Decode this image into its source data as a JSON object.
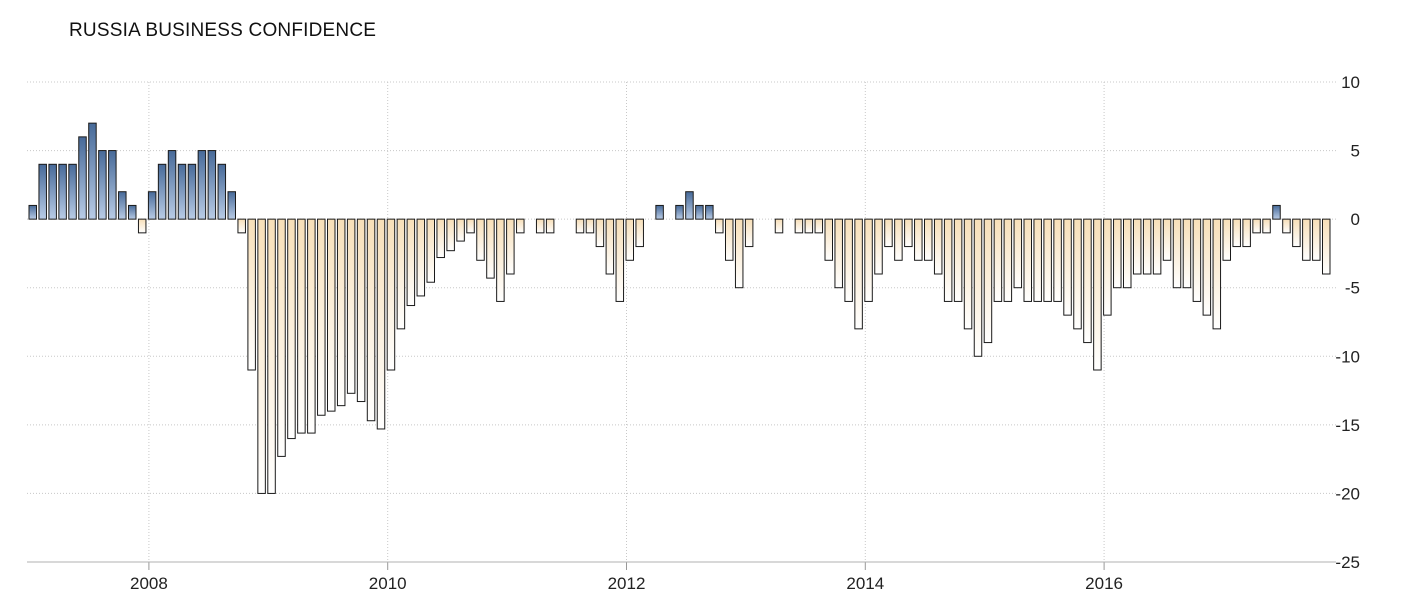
{
  "chart_data": {
    "type": "bar",
    "title": "RUSSIA BUSINESS CONFIDENCE",
    "xlabel": "",
    "ylabel": "",
    "ylim": [
      -25,
      10
    ],
    "y_ticks": [
      10,
      5,
      0,
      -5,
      -10,
      -15,
      -20,
      -25
    ],
    "x_ticks": [
      "2008",
      "2010",
      "2012",
      "2014",
      "2016"
    ],
    "x_range": [
      "2007-01",
      "2017-12"
    ],
    "grid": true,
    "y_axis_side": "right",
    "colors": {
      "positive": "#7f9ec9",
      "negative": "#fbe9cf",
      "outline": "#1a1a1a",
      "grid": "#c8c8c8"
    },
    "series": [
      {
        "values": [
          1,
          4,
          4,
          4,
          4,
          6,
          7,
          5,
          5,
          2,
          1,
          -1,
          2,
          4,
          5,
          4,
          4,
          5,
          5,
          4,
          2,
          -1,
          -11,
          -20,
          -20,
          -17.3,
          -16,
          -15.6,
          -15.6,
          -14.3,
          -14,
          -13.6,
          -12.7,
          -13.3,
          -14.7,
          -15.3,
          -11,
          -8,
          -6.3,
          -5.6,
          -4.6,
          -2.8,
          -2.3,
          -1.6,
          -1,
          -3,
          -4.3,
          -6,
          -4,
          -1,
          0,
          -1,
          -1,
          0,
          0,
          -1,
          -1,
          -2,
          -4,
          -6,
          -3,
          -2,
          0,
          1,
          0,
          1,
          2,
          1,
          1,
          -1,
          -3,
          -5,
          -2,
          0,
          0,
          -1,
          0,
          -1,
          -1,
          -1,
          -3,
          -5,
          -6,
          -8,
          -6,
          -4,
          -2,
          -3,
          -2,
          -3,
          -3,
          -4,
          -6,
          -6,
          -8,
          -10,
          -9,
          -6,
          -6,
          -5,
          -6,
          -6,
          -6,
          -6,
          -7,
          -8,
          -9,
          -11,
          -7,
          -5,
          -5,
          -4,
          -4,
          -4,
          -3,
          -5,
          -5,
          -6,
          -7,
          -8,
          -3,
          -2,
          -2,
          -1,
          -1,
          1,
          -1,
          -2,
          -3,
          -3,
          -4,
          0
        ]
      }
    ]
  }
}
